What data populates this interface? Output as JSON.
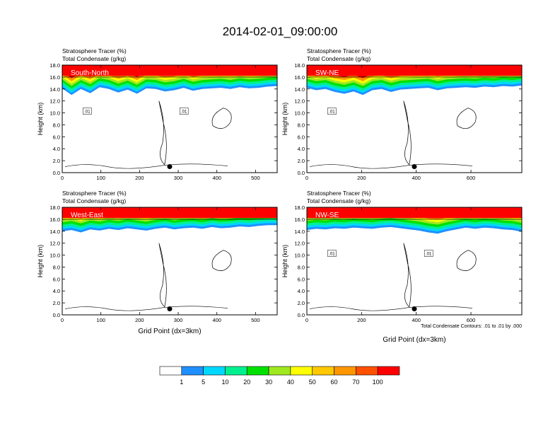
{
  "title": "2014-02-01_09:00:00",
  "colorbar": {
    "colors": [
      "#ffffff",
      "#1e90ff",
      "#00d8ff",
      "#00f090",
      "#00e000",
      "#a0e820",
      "#ffff00",
      "#ffc800",
      "#ff9600",
      "#ff5000",
      "#ff0000"
    ],
    "labels": [
      "1",
      "5",
      "10",
      "20",
      "30",
      "40",
      "50",
      "60",
      "70",
      "100"
    ]
  },
  "footnote": "Total Condensate Contours: .01 to .01 by .000",
  "chart_data": [
    {
      "type": "contour",
      "id": "south-north",
      "panel_label": "South-North",
      "subtitle_line1": "Stratosphere Tracer   (%)",
      "subtitle_line2": "Total Condensate   (g/kg)",
      "ylabel": "Height (km)",
      "xlabel": "",
      "xlim": [
        0,
        556
      ],
      "ylim": [
        0,
        18
      ],
      "xticks": [
        0,
        100,
        200,
        300,
        400,
        500
      ],
      "yticks": [
        "0.0",
        "2.0",
        "4.0",
        "6.0",
        "8.0",
        "10.0",
        "12.0",
        "14.0",
        "16.0",
        "18.0"
      ],
      "tracer_base_km": [
        14.1,
        13.0,
        14.0,
        13.3,
        14.3,
        14.0,
        13.4,
        13.9,
        13.2,
        14.1,
        14.0,
        13.6,
        13.8,
        14.2,
        13.7,
        14.0,
        14.1,
        14.2,
        14.0,
        14.3,
        14.1,
        14.2,
        14.4,
        14.5
      ],
      "contour_labels": [
        ".01",
        ".01"
      ],
      "marker_x": 278
    },
    {
      "type": "contour",
      "id": "sw-ne",
      "panel_label": "SW-NE",
      "subtitle_line1": "Stratosphere Tracer   (%)",
      "subtitle_line2": "Total Condensate   (g/kg)",
      "ylabel": "Height (km)",
      "xlabel": "",
      "xlim": [
        0,
        786
      ],
      "ylim": [
        0,
        18
      ],
      "xticks": [
        0,
        200,
        400,
        600
      ],
      "yticks": [
        "0.0",
        "2.0",
        "4.0",
        "6.0",
        "8.0",
        "10.0",
        "12.0",
        "14.0",
        "16.0",
        "18.0"
      ],
      "tracer_base_km": [
        14.2,
        13.8,
        14.0,
        13.5,
        13.2,
        13.6,
        13.0,
        13.8,
        14.0,
        13.5,
        13.9,
        14.0,
        14.1,
        14.2,
        13.8,
        14.1,
        14.2,
        14.3,
        14.2,
        14.4,
        14.3,
        14.5,
        14.4,
        14.6
      ],
      "contour_labels": [
        ".01"
      ],
      "marker_x": 393
    },
    {
      "type": "contour",
      "id": "west-east",
      "panel_label": "West-East",
      "subtitle_line1": "Stratosphere Tracer   (%)",
      "subtitle_line2": "Total Condensate   (g/kg)",
      "ylabel": "Height (km)",
      "xlabel": "Grid Point (dx=3km)",
      "xlim": [
        0,
        556
      ],
      "ylim": [
        0,
        18
      ],
      "xticks": [
        0,
        100,
        200,
        300,
        400,
        500
      ],
      "yticks": [
        "0.0",
        "2.0",
        "4.0",
        "6.0",
        "8.0",
        "10.0",
        "12.0",
        "14.0",
        "16.0",
        "18.0"
      ],
      "tracer_base_km": [
        14.0,
        14.2,
        13.8,
        14.3,
        14.1,
        14.4,
        14.2,
        14.5,
        14.3,
        14.1,
        14.4,
        14.6,
        14.3,
        14.5,
        14.6,
        14.4,
        14.7,
        14.5,
        14.6,
        14.8,
        14.7,
        14.9,
        15.0,
        15.0
      ],
      "contour_labels": [],
      "marker_x": 278
    },
    {
      "type": "contour",
      "id": "nw-se",
      "panel_label": "NW-SE",
      "subtitle_line1": "Stratosphere Tracer   (%)",
      "subtitle_line2": "Total Condensate   (g/kg)",
      "ylabel": "Height (km)",
      "xlabel": "Grid Point (dx=3km)",
      "xlim": [
        0,
        786
      ],
      "ylim": [
        0,
        18
      ],
      "xticks": [
        0,
        200,
        400,
        600
      ],
      "yticks": [
        "0.0",
        "2.0",
        "4.0",
        "6.0",
        "8.0",
        "10.0",
        "12.0",
        "14.0",
        "16.0",
        "18.0"
      ],
      "tracer_base_km": [
        14.2,
        14.4,
        14.3,
        14.5,
        14.4,
        14.6,
        14.5,
        14.4,
        14.6,
        14.7,
        14.5,
        14.3,
        14.1,
        13.8,
        13.6,
        14.0,
        14.3,
        14.6,
        14.4,
        14.6,
        14.5,
        14.3,
        14.2,
        13.9
      ],
      "contour_labels": [
        ".01",
        ".01"
      ],
      "marker_x": 393
    }
  ]
}
